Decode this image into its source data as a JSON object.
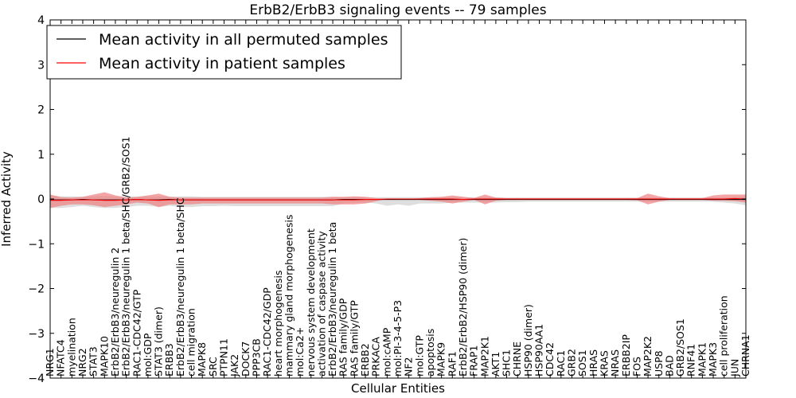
{
  "chart_data": {
    "type": "line",
    "title": "ErbB2/ErbB3 signaling events -- 79 samples",
    "xlabel": "Cellular Entities",
    "ylabel": "Inferred Activity",
    "ylim": [
      -4,
      4
    ],
    "yticks": [
      -4,
      -3,
      -2,
      -1,
      0,
      1,
      2,
      3,
      4
    ],
    "ytick_labels": [
      "−4",
      "−3",
      "−2",
      "−1",
      "0",
      "1",
      "2",
      "3",
      "4"
    ],
    "grid": false,
    "legend_position": "top-left",
    "categories": [
      "NRG1",
      "NFATC4",
      "myelination",
      "NRG2",
      "STAT3",
      "MAPK10",
      "ErbB2/ErbB3/neuregulin 2",
      "ErbB2/ErbB3/neuregulin 1 beta/SHC/GRB2/SOS1",
      "RAC1-CDC42/GTP",
      "mol:GDP",
      "STAT3 (dimer)",
      "ERBB3",
      "ErbB2/ErbB3/neuregulin 1 beta/SHC",
      "cell migration",
      "MAPK8",
      "SRC",
      "PTPN11",
      "JAK2",
      "DOCK7",
      "PPP3CB",
      "RAC1-CDC42/GDP",
      "heart morphogenesis",
      "mammary gland morphogenesis",
      "mol:Ca2+",
      "nervous system development",
      "activation of caspase activity",
      "ErbB2/ErbB3/neuregulin 1 beta",
      "RAS family/GDP",
      "RAS family/GTP",
      "ERBB2",
      "PRKACA",
      "mol:cAMP",
      "mol:PI-3-4-5-P3",
      "NF2",
      "mol:GTP",
      "apoptosis",
      "MAPK9",
      "RAF1",
      "ErbB2/ErbB2/HSP90 (dimer)",
      "FRAP1",
      "MAP2K1",
      "AKT1",
      "SHC1",
      "CHRNE",
      "HSP90 (dimer)",
      "HSP90AA1",
      "CDC42",
      "RAC1",
      "GRB2",
      "SOS1",
      "HRAS",
      "KRAS",
      "NRAS",
      "ERBB2IP",
      "FOS",
      "MAP2K2",
      "USP8",
      "BAD",
      "GRB2/SOS1",
      "RNF41",
      "MAPK1",
      "MAPK3",
      "cell proliferation",
      "JUN",
      "CHRNA1"
    ],
    "series": [
      {
        "name": "Mean activity in all permuted samples",
        "color": "#000000",
        "band_color": "#d3d3d3",
        "values": [
          -0.02,
          -0.02,
          -0.02,
          -0.01,
          -0.02,
          -0.02,
          -0.02,
          -0.02,
          -0.01,
          -0.02,
          -0.02,
          -0.01,
          -0.02,
          -0.02,
          -0.02,
          -0.02,
          -0.02,
          -0.02,
          -0.02,
          -0.02,
          -0.02,
          -0.02,
          -0.02,
          -0.02,
          -0.02,
          -0.02,
          -0.02,
          -0.01,
          -0.01,
          -0.01,
          -0.01,
          -0.01,
          -0.01,
          -0.01,
          -0.01,
          -0.01,
          -0.01,
          -0.01,
          -0.01,
          -0.01,
          -0.01,
          -0.01,
          -0.01,
          -0.01,
          -0.01,
          -0.01,
          -0.01,
          -0.01,
          -0.01,
          -0.01,
          -0.01,
          -0.01,
          -0.01,
          -0.01,
          -0.01,
          -0.01,
          -0.01,
          -0.01,
          -0.01,
          -0.01,
          -0.01,
          -0.01,
          -0.01,
          -0.01,
          -0.01
        ],
        "band_lower": [
          -0.2,
          -0.2,
          -0.18,
          -0.15,
          -0.18,
          -0.2,
          -0.2,
          -0.18,
          -0.15,
          -0.15,
          -0.18,
          -0.15,
          -0.18,
          -0.18,
          -0.16,
          -0.16,
          -0.15,
          -0.16,
          -0.16,
          -0.16,
          -0.16,
          -0.16,
          -0.16,
          -0.16,
          -0.16,
          -0.16,
          -0.16,
          -0.1,
          -0.08,
          -0.08,
          -0.1,
          -0.15,
          -0.12,
          -0.15,
          -0.1,
          -0.1,
          -0.1,
          -0.08,
          -0.08,
          -0.08,
          -0.08,
          -0.08,
          -0.07,
          -0.07,
          -0.06,
          -0.06,
          -0.06,
          -0.06,
          -0.06,
          -0.06,
          -0.06,
          -0.06,
          -0.06,
          -0.06,
          -0.06,
          -0.06,
          -0.06,
          -0.06,
          -0.06,
          -0.06,
          -0.06,
          -0.06,
          -0.08,
          -0.1,
          -0.14
        ],
        "band_upper": [
          0.08,
          0.06,
          0.06,
          0.05,
          0.06,
          0.07,
          0.06,
          0.06,
          0.05,
          0.06,
          0.06,
          0.05,
          0.06,
          0.06,
          0.05,
          0.05,
          0.05,
          0.05,
          0.05,
          0.05,
          0.05,
          0.05,
          0.05,
          0.05,
          0.05,
          0.05,
          0.05,
          0.04,
          0.04,
          0.04,
          0.04,
          0.04,
          0.04,
          0.04,
          0.04,
          0.04,
          0.04,
          0.04,
          0.04,
          0.04,
          0.04,
          0.04,
          0.03,
          0.03,
          0.03,
          0.03,
          0.03,
          0.03,
          0.03,
          0.03,
          0.03,
          0.03,
          0.03,
          0.03,
          0.03,
          0.03,
          0.03,
          0.03,
          0.03,
          0.03,
          0.03,
          0.03,
          0.04,
          0.05,
          0.06
        ]
      },
      {
        "name": "Mean activity in patient samples",
        "color": "#ff0000",
        "band_color": "#f08080",
        "values": [
          -0.03,
          -0.03,
          -0.02,
          -0.02,
          -0.02,
          -0.03,
          -0.03,
          -0.02,
          -0.01,
          -0.02,
          -0.03,
          -0.02,
          -0.02,
          -0.02,
          -0.02,
          -0.02,
          -0.02,
          -0.02,
          -0.02,
          -0.02,
          -0.02,
          -0.02,
          -0.02,
          -0.02,
          -0.02,
          -0.02,
          -0.02,
          -0.02,
          -0.02,
          -0.01,
          -0.01,
          0,
          0,
          0,
          0,
          0,
          0,
          0,
          -0.01,
          0,
          0,
          0,
          0,
          0,
          0,
          0,
          0,
          0,
          0,
          0,
          0,
          0,
          0,
          0,
          0,
          0,
          0,
          0,
          0,
          0,
          0,
          0,
          0,
          0.01,
          0
        ],
        "band_lower": [
          -0.2,
          -0.15,
          -0.12,
          -0.12,
          -0.14,
          -0.18,
          -0.15,
          -0.12,
          -0.08,
          -0.1,
          -0.18,
          -0.12,
          -0.12,
          -0.12,
          -0.1,
          -0.1,
          -0.1,
          -0.1,
          -0.1,
          -0.1,
          -0.1,
          -0.1,
          -0.1,
          -0.1,
          -0.1,
          -0.1,
          -0.12,
          -0.12,
          -0.12,
          -0.1,
          -0.05,
          0,
          0,
          0,
          -0.02,
          -0.04,
          -0.06,
          -0.1,
          -0.06,
          -0.02,
          -0.12,
          -0.04,
          -0.02,
          -0.02,
          -0.02,
          -0.02,
          -0.02,
          -0.02,
          -0.02,
          -0.02,
          -0.02,
          -0.02,
          -0.02,
          -0.02,
          -0.03,
          -0.12,
          -0.06,
          -0.02,
          -0.02,
          -0.02,
          -0.02,
          -0.04,
          -0.04,
          -0.05,
          -0.08
        ],
        "band_upper": [
          0.1,
          0.04,
          0.03,
          0.05,
          0.1,
          0.15,
          0.08,
          0.03,
          0.05,
          0.08,
          0.12,
          0.05,
          0.03,
          0.03,
          0.03,
          0.03,
          0.03,
          0.03,
          0.03,
          0.03,
          0.03,
          0.03,
          0.03,
          0.03,
          0.03,
          0.03,
          0.05,
          0.05,
          0.06,
          0.05,
          0.02,
          0,
          0,
          0,
          0.02,
          0.04,
          0.05,
          0.08,
          0.05,
          0.02,
          0.1,
          0.03,
          0.02,
          0.02,
          0.02,
          0.02,
          0.02,
          0.02,
          0.02,
          0.02,
          0.02,
          0.02,
          0.02,
          0.02,
          0.02,
          0.12,
          0.06,
          0.02,
          0.02,
          0.02,
          0.02,
          0.08,
          0.1,
          0.1,
          0.1
        ]
      }
    ]
  }
}
